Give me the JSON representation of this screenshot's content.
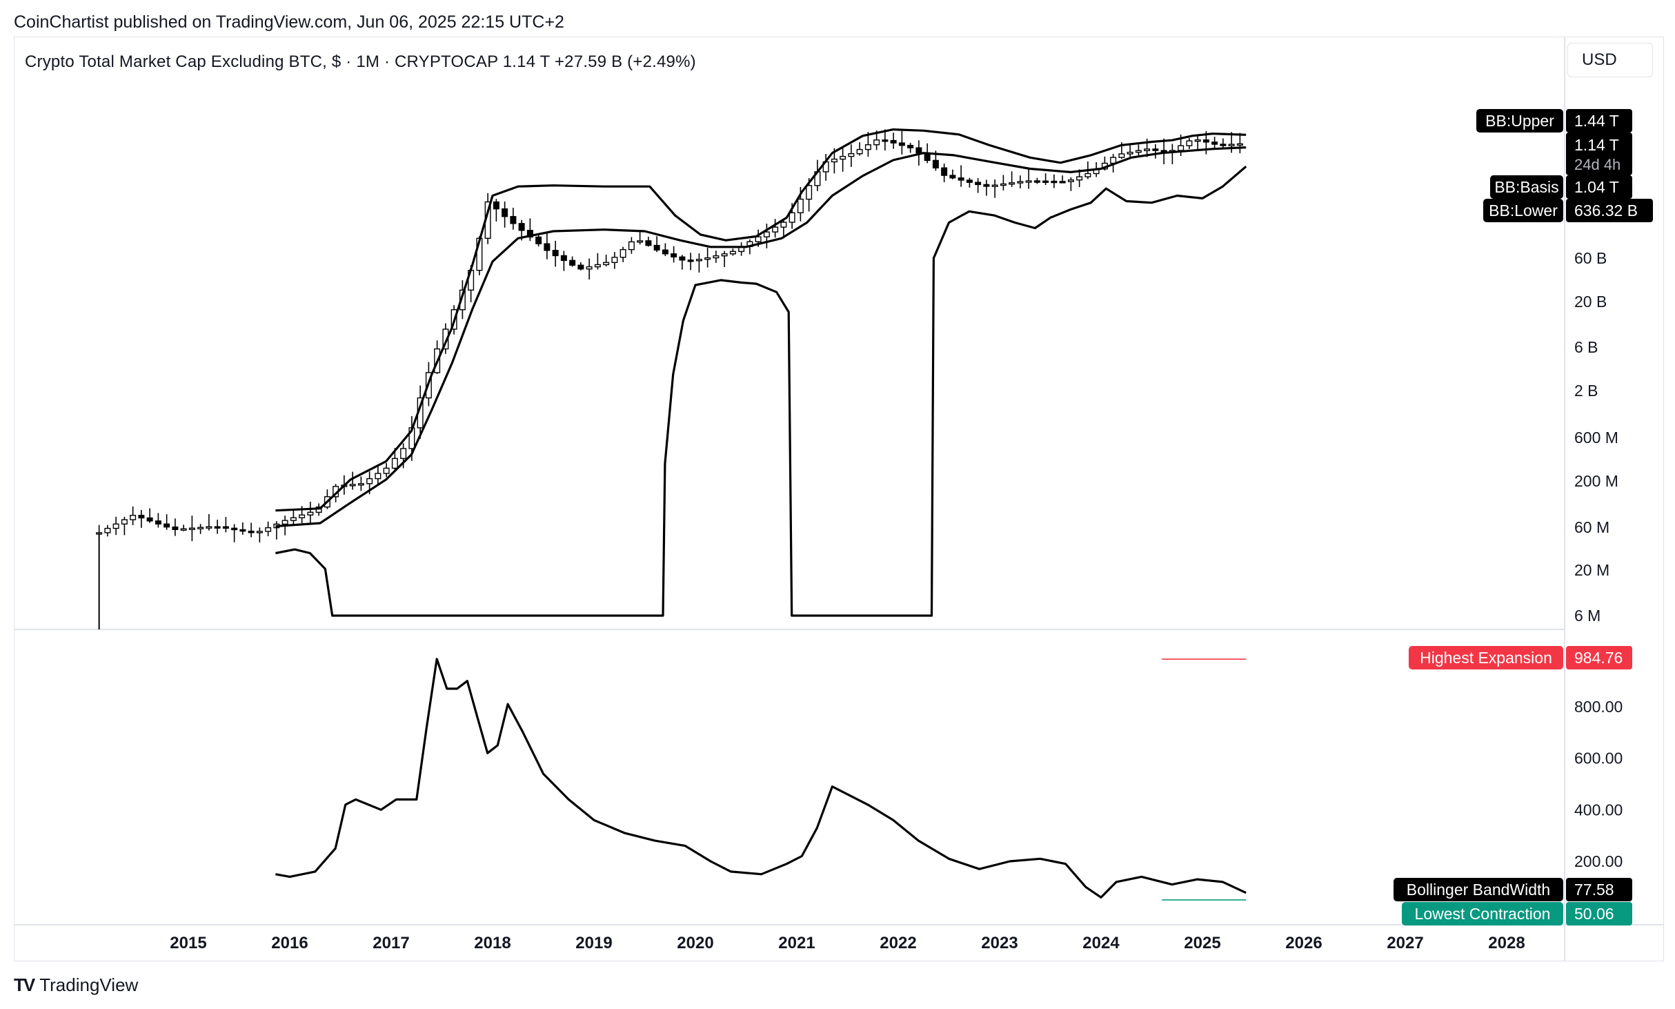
{
  "header": {
    "published_line": "CoinChartist published on TradingView.com, Jun 06, 2025 22:15 UTC+2",
    "title_line": "Crypto Total Market Cap Excluding BTC, $ · 1M · CRYPTOCAP  1.14 T  +27.59 B (+2.49%)",
    "currency": "USD"
  },
  "footer": {
    "brand": "TradingView",
    "logo_glyph": "TV"
  },
  "colors": {
    "line": "#000000",
    "highest_expansion": "#f23645",
    "lowest_contraction": "#089981",
    "label_dark": "#000000",
    "grid_border": "#e0e3eb",
    "axis_text": "#131722"
  },
  "chart_data": [
    {
      "type": "candlestick",
      "title": "Crypto Total Market Cap Excluding BTC, $ · 1M · CRYPTOCAP",
      "scale": "log",
      "y_tick_labels": [
        "6 M",
        "20 M",
        "60 M",
        "200 M",
        "600 M",
        "2 B",
        "6 B",
        "20 B",
        "60 B"
      ],
      "x_tick_labels": [
        "2015",
        "2016",
        "2017",
        "2018",
        "2019",
        "2020",
        "2021",
        "2022",
        "2023",
        "2024",
        "2025",
        "2026",
        "2027",
        "2028"
      ],
      "price_points": [
        [
          2014.15,
          50000000
        ],
        [
          2014.5,
          80000000
        ],
        [
          2014.9,
          55000000
        ],
        [
          2015.3,
          60000000
        ],
        [
          2015.7,
          50000000
        ],
        [
          2016.0,
          70000000
        ],
        [
          2016.3,
          90000000
        ],
        [
          2016.5,
          170000000
        ],
        [
          2016.75,
          180000000
        ],
        [
          2017.0,
          270000000
        ],
        [
          2017.2,
          500000000
        ],
        [
          2017.35,
          2000000000
        ],
        [
          2017.5,
          6000000000
        ],
        [
          2017.7,
          20000000000
        ],
        [
          2017.85,
          50000000000
        ],
        [
          2018.0,
          270000000000
        ],
        [
          2018.1,
          200000000000
        ],
        [
          2018.3,
          130000000000
        ],
        [
          2018.6,
          70000000000
        ],
        [
          2018.9,
          45000000000
        ],
        [
          2019.2,
          55000000000
        ],
        [
          2019.45,
          100000000000
        ],
        [
          2019.7,
          70000000000
        ],
        [
          2019.95,
          55000000000
        ],
        [
          2020.15,
          60000000000
        ],
        [
          2020.4,
          70000000000
        ],
        [
          2020.7,
          110000000000
        ],
        [
          2020.95,
          160000000000
        ],
        [
          2021.1,
          300000000000
        ],
        [
          2021.3,
          700000000000
        ],
        [
          2021.6,
          900000000000
        ],
        [
          2021.85,
          1300000000000
        ],
        [
          2022.2,
          1000000000000
        ],
        [
          2022.5,
          500000000000
        ],
        [
          2022.9,
          380000000000
        ],
        [
          2023.3,
          440000000000
        ],
        [
          2023.7,
          430000000000
        ],
        [
          2023.95,
          550000000000
        ],
        [
          2024.2,
          860000000000
        ],
        [
          2024.5,
          1000000000000
        ],
        [
          2024.7,
          900000000000
        ],
        [
          2024.95,
          1300000000000
        ],
        [
          2025.2,
          1100000000000
        ],
        [
          2025.4,
          1140000000000
        ]
      ],
      "series": [
        {
          "name": "BB:Upper",
          "last_value": "1.44 T",
          "points": [
            [
              2015.86,
              90000000
            ],
            [
              2016.3,
              95000000
            ],
            [
              2016.6,
              200000000
            ],
            [
              2016.95,
              320000000
            ],
            [
              2017.2,
              700000000
            ],
            [
              2017.4,
              3000000000
            ],
            [
              2017.6,
              10000000000
            ],
            [
              2017.8,
              50000000000
            ],
            [
              2018.0,
              300000000000
            ],
            [
              2018.25,
              380000000000
            ],
            [
              2018.6,
              390000000000
            ],
            [
              2019.1,
              380000000000
            ],
            [
              2019.55,
              380000000000
            ],
            [
              2019.8,
              180000000000
            ],
            [
              2020.05,
              110000000000
            ],
            [
              2020.3,
              95000000000
            ],
            [
              2020.6,
              105000000000
            ],
            [
              2020.9,
              170000000000
            ],
            [
              2021.05,
              330000000000
            ],
            [
              2021.35,
              900000000000
            ],
            [
              2021.65,
              1400000000000
            ],
            [
              2021.95,
              1650000000000
            ],
            [
              2022.25,
              1600000000000
            ],
            [
              2022.6,
              1450000000000
            ],
            [
              2022.9,
              1100000000000
            ],
            [
              2023.3,
              800000000000
            ],
            [
              2023.6,
              700000000000
            ],
            [
              2023.9,
              850000000000
            ],
            [
              2024.2,
              1100000000000
            ],
            [
              2024.5,
              1200000000000
            ],
            [
              2024.7,
              1250000000000
            ],
            [
              2024.9,
              1400000000000
            ],
            [
              2025.1,
              1480000000000
            ],
            [
              2025.43,
              1440000000000
            ]
          ]
        },
        {
          "name": "BB:Basis",
          "last_value": "1.04 T",
          "points": [
            [
              2015.86,
              60000000
            ],
            [
              2016.3,
              65000000
            ],
            [
              2016.6,
              110000000
            ],
            [
              2016.95,
              200000000
            ],
            [
              2017.2,
              380000000
            ],
            [
              2017.4,
              1200000000
            ],
            [
              2017.6,
              4000000000
            ],
            [
              2017.8,
              16000000000
            ],
            [
              2018.0,
              55000000000
            ],
            [
              2018.25,
              100000000000
            ],
            [
              2018.6,
              120000000000
            ],
            [
              2019.1,
              125000000000
            ],
            [
              2019.5,
              120000000000
            ],
            [
              2019.85,
              95000000000
            ],
            [
              2020.15,
              80000000000
            ],
            [
              2020.5,
              80000000000
            ],
            [
              2020.85,
              100000000000
            ],
            [
              2021.1,
              150000000000
            ],
            [
              2021.35,
              300000000000
            ],
            [
              2021.65,
              500000000000
            ],
            [
              2021.95,
              750000000000
            ],
            [
              2022.25,
              900000000000
            ],
            [
              2022.55,
              850000000000
            ],
            [
              2022.9,
              720000000000
            ],
            [
              2023.3,
              600000000000
            ],
            [
              2023.7,
              550000000000
            ],
            [
              2024.0,
              600000000000
            ],
            [
              2024.3,
              800000000000
            ],
            [
              2024.6,
              900000000000
            ],
            [
              2024.85,
              950000000000
            ],
            [
              2025.1,
              1000000000000
            ],
            [
              2025.43,
              1040000000000
            ]
          ]
        },
        {
          "name": "BB:Lower",
          "last_value": "636.32 B",
          "points": [
            [
              2015.86,
              30000000
            ],
            [
              2016.05,
              33000000
            ],
            [
              2016.2,
              30000000
            ],
            [
              2016.35,
              20000000
            ],
            [
              2016.42,
              6000000
            ],
            [
              2019.68,
              6000000
            ],
            [
              2019.7,
              300000000
            ],
            [
              2019.78,
              3000000000
            ],
            [
              2019.88,
              12000000000
            ],
            [
              2020.0,
              30000000000
            ],
            [
              2020.25,
              34000000000
            ],
            [
              2020.45,
              32000000000
            ],
            [
              2020.6,
              31000000000
            ],
            [
              2020.8,
              25000000000
            ],
            [
              2020.92,
              15000000000
            ],
            [
              2020.95,
              6000000
            ],
            [
              2022.33,
              6000000
            ],
            [
              2022.35,
              60000000000
            ],
            [
              2022.5,
              150000000000
            ],
            [
              2022.7,
              200000000000
            ],
            [
              2022.95,
              180000000000
            ],
            [
              2023.15,
              150000000000
            ],
            [
              2023.35,
              130000000000
            ],
            [
              2023.5,
              170000000000
            ],
            [
              2023.7,
              210000000000
            ],
            [
              2023.9,
              250000000000
            ],
            [
              2024.05,
              360000000000
            ],
            [
              2024.25,
              260000000000
            ],
            [
              2024.5,
              250000000000
            ],
            [
              2024.75,
              300000000000
            ],
            [
              2025.0,
              280000000000
            ],
            [
              2025.2,
              380000000000
            ],
            [
              2025.43,
              636320000000
            ]
          ]
        }
      ],
      "last_value": "1.14 T",
      "countdown": "24d 4h",
      "legend": "right price-axis labels"
    },
    {
      "type": "line",
      "title": "",
      "y_tick_labels": [
        "200.00",
        "400.00",
        "600.00",
        "800.00"
      ],
      "ylim": [
        0,
        1100
      ],
      "series": [
        {
          "name": "Bollinger BandWidth",
          "last_value": "77.58",
          "points": [
            [
              2015.86,
              150
            ],
            [
              2016.0,
              140
            ],
            [
              2016.25,
              160
            ],
            [
              2016.45,
              250
            ],
            [
              2016.55,
              420
            ],
            [
              2016.65,
              440
            ],
            [
              2016.9,
              400
            ],
            [
              2017.05,
              440
            ],
            [
              2017.25,
              440
            ],
            [
              2017.35,
              720
            ],
            [
              2017.45,
              985
            ],
            [
              2017.55,
              870
            ],
            [
              2017.65,
              870
            ],
            [
              2017.75,
              900
            ],
            [
              2017.85,
              760
            ],
            [
              2017.95,
              620
            ],
            [
              2018.05,
              650
            ],
            [
              2018.15,
              810
            ],
            [
              2018.3,
              700
            ],
            [
              2018.5,
              540
            ],
            [
              2018.75,
              440
            ],
            [
              2019.0,
              360
            ],
            [
              2019.3,
              310
            ],
            [
              2019.6,
              280
            ],
            [
              2019.9,
              260
            ],
            [
              2020.15,
              200
            ],
            [
              2020.35,
              160
            ],
            [
              2020.65,
              150
            ],
            [
              2020.9,
              190
            ],
            [
              2021.05,
              220
            ],
            [
              2021.2,
              330
            ],
            [
              2021.35,
              490
            ],
            [
              2021.5,
              460
            ],
            [
              2021.7,
              420
            ],
            [
              2021.95,
              360
            ],
            [
              2022.2,
              280
            ],
            [
              2022.5,
              210
            ],
            [
              2022.8,
              170
            ],
            [
              2023.1,
              200
            ],
            [
              2023.4,
              210
            ],
            [
              2023.65,
              190
            ],
            [
              2023.85,
              100
            ],
            [
              2024.0,
              60
            ],
            [
              2024.15,
              120
            ],
            [
              2024.4,
              140
            ],
            [
              2024.7,
              110
            ],
            [
              2024.95,
              130
            ],
            [
              2025.2,
              120
            ],
            [
              2025.43,
              77.58
            ]
          ]
        }
      ],
      "reference_lines": [
        {
          "name": "Highest Expansion",
          "value": 984.76,
          "label": "984.76"
        },
        {
          "name": "Lowest Contraction",
          "value": 50.06,
          "label": "50.06"
        }
      ]
    }
  ]
}
